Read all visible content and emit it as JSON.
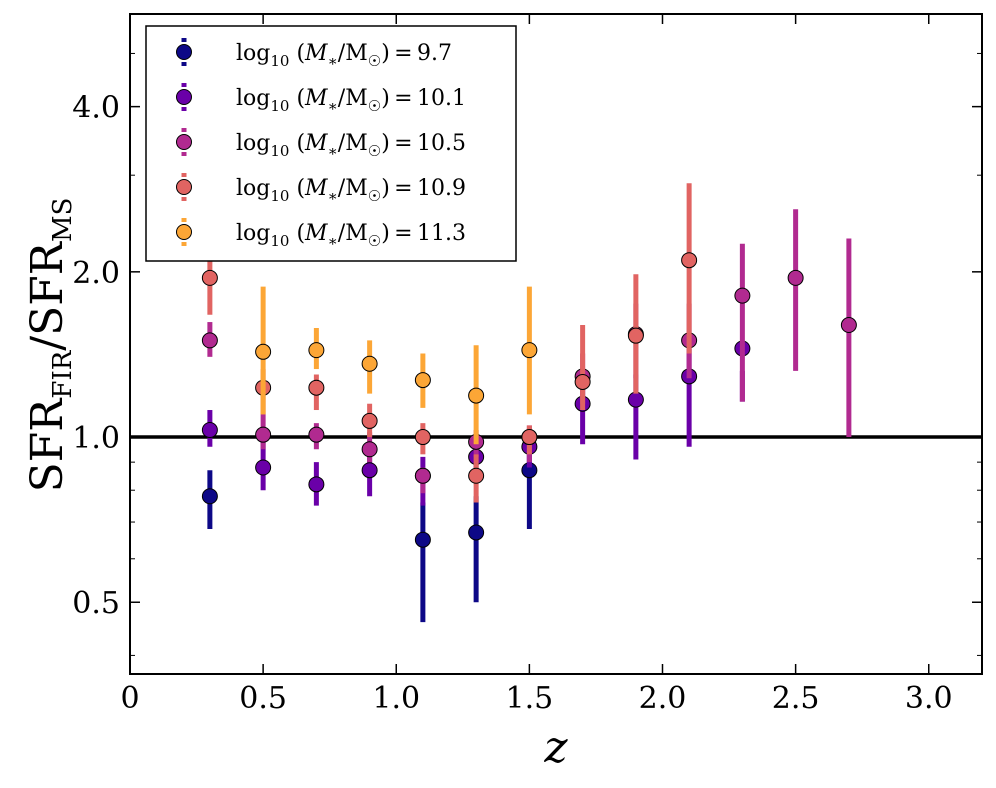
{
  "chart_data": {
    "type": "scatter",
    "title": "",
    "xlabel": "z",
    "ylabel": "SFR_FIR/SFR_MS",
    "ylabel_parts": {
      "main1": "SFR",
      "sub1": "FIR",
      "sep": "/",
      "main2": "SFR",
      "sub2": "MS"
    },
    "xlim": [
      0,
      3.2
    ],
    "ylim": [
      0.37,
      5.9
    ],
    "yscale": "log",
    "x_ticks": [
      0,
      0.5,
      1.0,
      1.5,
      2.0,
      2.5,
      3.0
    ],
    "x_tick_labels": [
      "0",
      "0.5",
      "1.0",
      "1.5",
      "2.0",
      "2.5",
      "3.0"
    ],
    "y_ticks": [
      0.5,
      1.0,
      2.0,
      4.0
    ],
    "y_tick_labels": [
      "0.5",
      "1.0",
      "2.0",
      "4.0"
    ],
    "reference_line": {
      "y": 1.0,
      "color": "#000000"
    },
    "legend_position": "top-left",
    "series": [
      {
        "name": "log10 (M*/M☉) = 9.7",
        "label_value": "9.7",
        "color": "#0d0887",
        "points": [
          {
            "x": 0.3,
            "y": 0.78,
            "ylo": 0.68,
            "yhi": 0.87
          },
          {
            "x": 1.1,
            "y": 0.65,
            "ylo": 0.46,
            "yhi": 0.76
          },
          {
            "x": 1.3,
            "y": 0.67,
            "ylo": 0.5,
            "yhi": 0.78
          },
          {
            "x": 1.5,
            "y": 0.87,
            "ylo": 0.68,
            "yhi": 0.95
          }
        ]
      },
      {
        "name": "log10 (M*/M☉) = 10.1",
        "label_value": "10.1",
        "color": "#6a00a8",
        "points": [
          {
            "x": 0.3,
            "y": 1.03,
            "ylo": 0.96,
            "yhi": 1.12
          },
          {
            "x": 0.5,
            "y": 0.88,
            "ylo": 0.8,
            "yhi": 1.0
          },
          {
            "x": 0.7,
            "y": 0.82,
            "ylo": 0.75,
            "yhi": 0.9
          },
          {
            "x": 0.9,
            "y": 0.87,
            "ylo": 0.78,
            "yhi": 0.96
          },
          {
            "x": 1.1,
            "y": 0.85,
            "ylo": 0.75,
            "yhi": 0.92
          },
          {
            "x": 1.3,
            "y": 0.92,
            "ylo": 0.84,
            "yhi": 1.0
          },
          {
            "x": 1.5,
            "y": 0.96,
            "ylo": 0.88,
            "yhi": 1.03
          },
          {
            "x": 1.7,
            "y": 1.15,
            "ylo": 0.97,
            "yhi": 1.28
          },
          {
            "x": 1.9,
            "y": 1.17,
            "ylo": 0.91,
            "yhi": 1.3
          },
          {
            "x": 2.1,
            "y": 1.29,
            "ylo": 0.96,
            "yhi": 1.45
          },
          {
            "x": 2.3,
            "y": 1.45,
            "ylo": 1.16,
            "yhi": 1.32
          }
        ]
      },
      {
        "name": "log10 (M*/M☉) = 10.5",
        "label_value": "10.5",
        "color": "#b12a90",
        "points": [
          {
            "x": 0.3,
            "y": 1.5,
            "ylo": 1.4,
            "yhi": 1.62
          },
          {
            "x": 0.5,
            "y": 1.01,
            "ylo": 0.95,
            "yhi": 1.1
          },
          {
            "x": 0.7,
            "y": 1.01,
            "ylo": 0.95,
            "yhi": 1.06
          },
          {
            "x": 0.9,
            "y": 0.95,
            "ylo": 0.9,
            "yhi": 1.02
          },
          {
            "x": 1.1,
            "y": 0.85,
            "ylo": 0.79,
            "yhi": 0.88
          },
          {
            "x": 1.3,
            "y": 0.98,
            "ylo": 0.92,
            "yhi": 1.03
          },
          {
            "x": 1.5,
            "y": 1.0,
            "ylo": 0.9,
            "yhi": 1.05
          },
          {
            "x": 1.7,
            "y": 1.29,
            "ylo": 1.15,
            "yhi": 1.42
          },
          {
            "x": 1.9,
            "y": 1.54,
            "ylo": 1.28,
            "yhi": 1.75
          },
          {
            "x": 2.1,
            "y": 1.5,
            "ylo": 1.28,
            "yhi": 1.75
          },
          {
            "x": 2.3,
            "y": 1.81,
            "ylo": 1.16,
            "yhi": 2.25
          },
          {
            "x": 2.5,
            "y": 1.95,
            "ylo": 1.32,
            "yhi": 2.6
          },
          {
            "x": 2.7,
            "y": 1.6,
            "ylo": 1.0,
            "yhi": 2.3
          }
        ]
      },
      {
        "name": "log10 (M*/M☉) = 10.9",
        "label_value": "10.9",
        "color": "#e16462",
        "points": [
          {
            "x": 0.3,
            "y": 1.95,
            "ylo": 1.67,
            "yhi": 2.27
          },
          {
            "x": 0.5,
            "y": 1.23,
            "ylo": 1.1,
            "yhi": 1.33
          },
          {
            "x": 0.7,
            "y": 1.23,
            "ylo": 1.12,
            "yhi": 1.3
          },
          {
            "x": 0.9,
            "y": 1.07,
            "ylo": 1.0,
            "yhi": 1.15
          },
          {
            "x": 1.1,
            "y": 1.0,
            "ylo": 0.93,
            "yhi": 1.06
          },
          {
            "x": 1.3,
            "y": 0.85,
            "ylo": 0.76,
            "yhi": 0.93
          },
          {
            "x": 1.5,
            "y": 1.0,
            "ylo": 0.93,
            "yhi": 1.05
          },
          {
            "x": 1.7,
            "y": 1.26,
            "ylo": 1.12,
            "yhi": 1.6
          },
          {
            "x": 1.9,
            "y": 1.53,
            "ylo": 1.2,
            "yhi": 1.98
          },
          {
            "x": 2.1,
            "y": 2.1,
            "ylo": 1.42,
            "yhi": 2.9
          }
        ]
      },
      {
        "name": "log10 (M*/M☉) = 11.3",
        "label_value": "11.3",
        "color": "#fca636",
        "points": [
          {
            "x": 0.5,
            "y": 1.43,
            "ylo": 1.1,
            "yhi": 1.88
          },
          {
            "x": 0.7,
            "y": 1.44,
            "ylo": 1.33,
            "yhi": 1.58
          },
          {
            "x": 0.9,
            "y": 1.36,
            "ylo": 1.2,
            "yhi": 1.5
          },
          {
            "x": 1.1,
            "y": 1.27,
            "ylo": 1.13,
            "yhi": 1.42
          },
          {
            "x": 1.3,
            "y": 1.19,
            "ylo": 0.97,
            "yhi": 1.47
          },
          {
            "x": 1.5,
            "y": 1.44,
            "ylo": 1.1,
            "yhi": 1.88
          }
        ]
      }
    ]
  }
}
